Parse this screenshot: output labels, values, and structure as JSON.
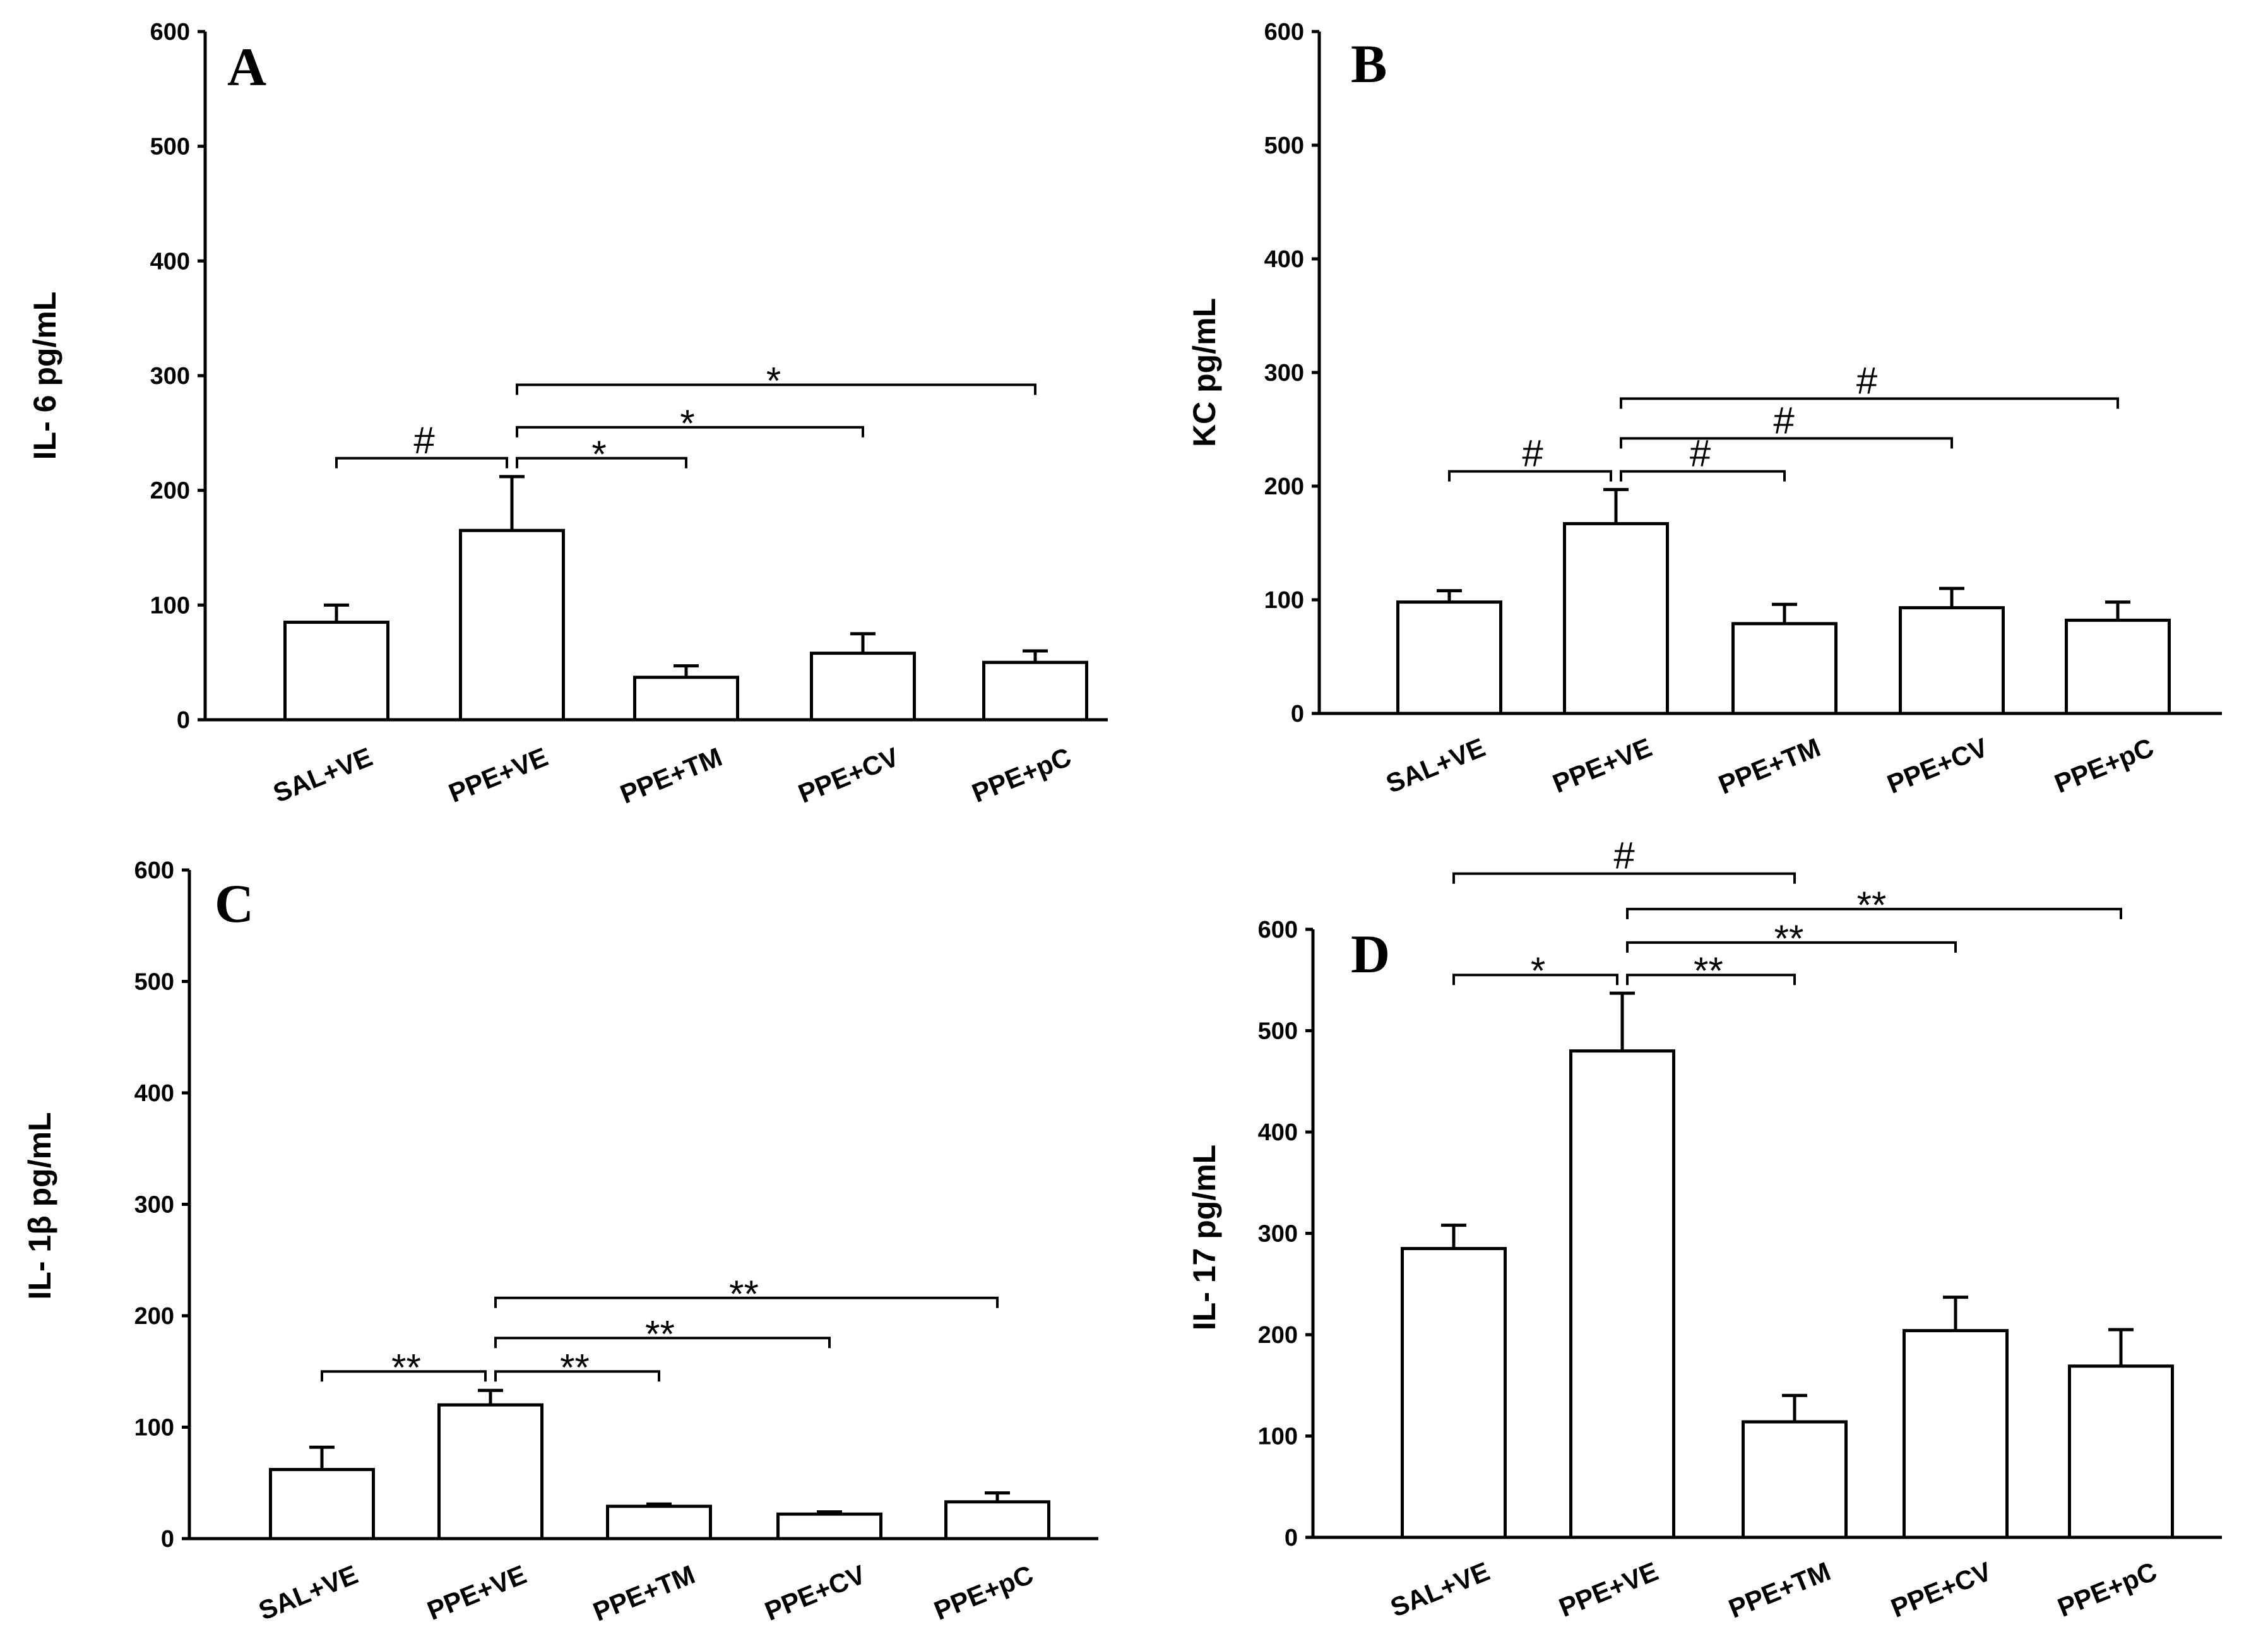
{
  "chart_data": [
    {
      "type": "bar",
      "panel": "A",
      "ylabel": "IL- 6 pg/mL",
      "ylim": [
        0,
        600
      ],
      "yticks": [
        0,
        100,
        200,
        300,
        400,
        500,
        600
      ],
      "categories": [
        "SAL+VE",
        "PPE+VE",
        "PPE+TM",
        "PPE+CV",
        "PPE+pC"
      ],
      "values": [
        85,
        165,
        37,
        58,
        50
      ],
      "errors": [
        15,
        47,
        10,
        17,
        10
      ],
      "significance": [
        {
          "from": 0,
          "to": 1,
          "label": "#",
          "level": 228
        },
        {
          "from": 1,
          "to": 2,
          "label": "*",
          "level": 228
        },
        {
          "from": 1,
          "to": 3,
          "label": "*",
          "level": 255
        },
        {
          "from": 1,
          "to": 4,
          "label": "*",
          "level": 292
        }
      ]
    },
    {
      "type": "bar",
      "panel": "B",
      "ylabel": "KC pg/mL",
      "ylim": [
        0,
        600
      ],
      "yticks": [
        0,
        100,
        200,
        300,
        400,
        500,
        600
      ],
      "categories": [
        "SAL+VE",
        "PPE+VE",
        "PPE+TM",
        "PPE+CV",
        "PPE+pC"
      ],
      "values": [
        98,
        167,
        79,
        93,
        82
      ],
      "errors": [
        10,
        30,
        17,
        17,
        16
      ],
      "significance": [
        {
          "from": 0,
          "to": 1,
          "label": "#",
          "level": 213
        },
        {
          "from": 1,
          "to": 2,
          "label": "#",
          "level": 213
        },
        {
          "from": 1,
          "to": 3,
          "label": "#",
          "level": 242
        },
        {
          "from": 1,
          "to": 4,
          "label": "#",
          "level": 277
        }
      ]
    },
    {
      "type": "bar",
      "panel": "C",
      "ylabel": "IL- 1β pg/mL",
      "ylim": [
        0,
        600
      ],
      "yticks": [
        0,
        100,
        200,
        300,
        400,
        500,
        600
      ],
      "categories": [
        "SAL+VE",
        "PPE+VE",
        "PPE+TM",
        "PPE+CV",
        "PPE+pC"
      ],
      "values": [
        62,
        120,
        29,
        22,
        33
      ],
      "errors": [
        20,
        13,
        2,
        2,
        8
      ],
      "significance": [
        {
          "from": 0,
          "to": 1,
          "label": "**",
          "level": 150
        },
        {
          "from": 1,
          "to": 2,
          "label": "**",
          "level": 150
        },
        {
          "from": 1,
          "to": 3,
          "label": "**",
          "level": 180
        },
        {
          "from": 1,
          "to": 4,
          "label": "**",
          "level": 216
        }
      ]
    },
    {
      "type": "bar",
      "panel": "D",
      "ylabel": "IL- 17 pg/mL",
      "ylim": [
        0,
        600
      ],
      "yticks": [
        0,
        100,
        200,
        300,
        400,
        500,
        600
      ],
      "categories": [
        "SAL+VE",
        "PPE+VE",
        "PPE+TM",
        "PPE+CV",
        "PPE+pC"
      ],
      "values": [
        285,
        480,
        114,
        204,
        169
      ],
      "errors": [
        23,
        57,
        26,
        33,
        36
      ],
      "significance": [
        {
          "from": 0,
          "to": 1,
          "label": "*",
          "level": 555
        },
        {
          "from": 1,
          "to": 2,
          "label": "**",
          "level": 555
        },
        {
          "from": 1,
          "to": 3,
          "label": "**",
          "level": 587
        },
        {
          "from": 1,
          "to": 4,
          "label": "**",
          "level": 620
        },
        {
          "from": 0,
          "to": 2,
          "label": "#",
          "level": 655
        }
      ]
    }
  ]
}
